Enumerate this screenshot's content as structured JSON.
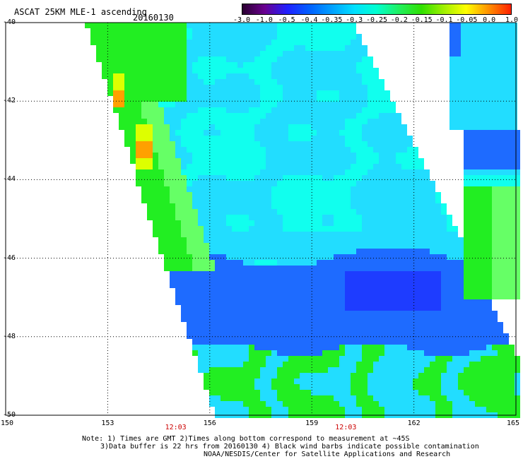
{
  "header": {
    "title": "ASCAT 25KM MLE-1 ascending",
    "date": "20160130"
  },
  "colorbar": {
    "tick_labels": [
      "-3.0",
      "-1.0",
      "-0.5",
      "-0.4",
      "-0.35",
      "-0.3",
      "-0.25",
      "-0.2",
      "-0.15",
      "-0.1",
      "-0.05",
      "0.0",
      "1.0"
    ],
    "colors": [
      "#2a0030",
      "#6a0090",
      "#2020ff",
      "#0060ff",
      "#00a0ff",
      "#00e0ff",
      "#00ffd0",
      "#20f060",
      "#30e000",
      "#a0f000",
      "#ffff00",
      "#ff9000",
      "#ff2000"
    ]
  },
  "map": {
    "lat_labels": [
      "-40",
      "-42",
      "-44",
      "-46",
      "-48",
      "-50"
    ],
    "lon_labels": [
      "150",
      "153",
      "156",
      "159",
      "162",
      "165"
    ],
    "time_labels": [
      "12:03",
      "12:03"
    ],
    "lat_range": [
      -50,
      -40
    ],
    "lon_range": [
      150,
      165
    ],
    "field_colors": {
      "green": "#22ee22",
      "lightgreen": "#66ff66",
      "cyan": "#11ffee",
      "lightblue": "#22ddff",
      "blue": "#1e6bff",
      "darkblue": "#1e3cff",
      "yellow": "#ddff00",
      "orange": "#ffa000"
    }
  },
  "footer": {
    "note_line1": "Note: 1) Times are GMT 2)Times along bottom correspond to measurement at ~45S",
    "note_line2": "3)Data buffer is 22 hrs from 20160130 4) Black wind barbs indicate possible contamination",
    "note_line3": "NOAA/NESDIS/Center for Satellite Applications and Research"
  }
}
